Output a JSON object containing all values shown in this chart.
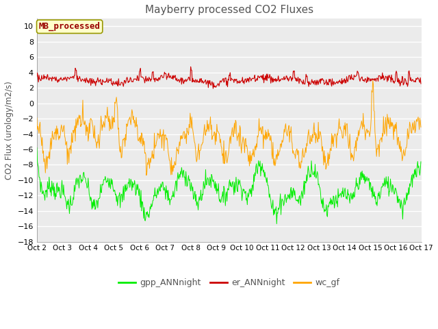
{
  "title": "Mayberry processed CO2 Fluxes",
  "ylabel": "CO2 Flux (urology/m2/s)",
  "ylim": [
    -18,
    11
  ],
  "yticks": [
    -18,
    -16,
    -14,
    -12,
    -10,
    -8,
    -6,
    -4,
    -2,
    0,
    2,
    4,
    6,
    8,
    10
  ],
  "background_color": "#ffffff",
  "plot_bg_color": "#ebebeb",
  "grid_color": "#ffffff",
  "legend_label": "MB_processed",
  "legend_box_color": "#ffffcc",
  "legend_box_edge": "#999900",
  "legend_text_color": "#990000",
  "gpp_color": "#00ee00",
  "er_color": "#cc0000",
  "wc_color": "#ffa500",
  "legend_entries": [
    "gpp_ANNnight",
    "er_ANNnight",
    "wc_gf"
  ],
  "n_points": 720,
  "random_seed": 7
}
